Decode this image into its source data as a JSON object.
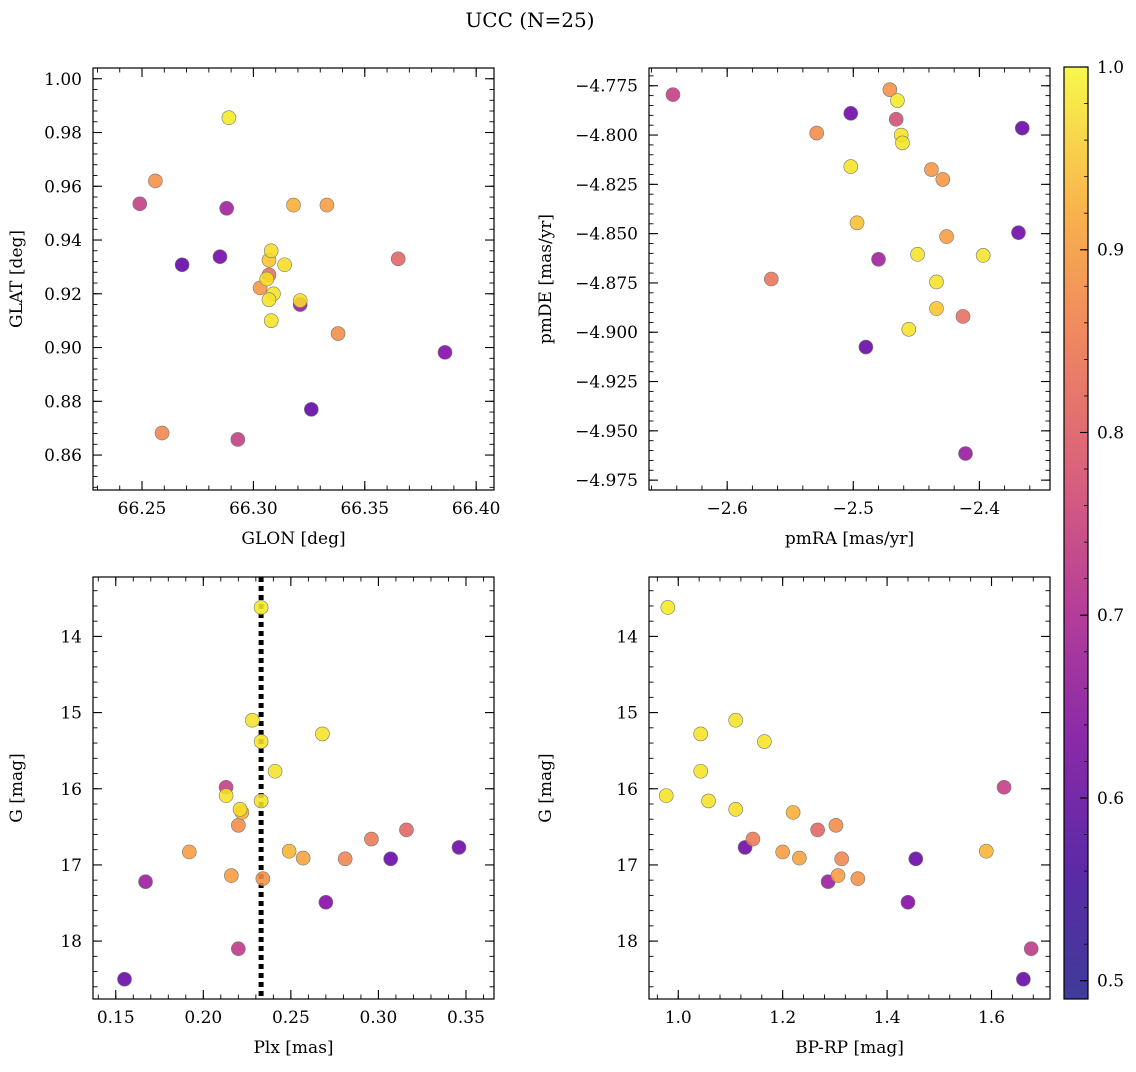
{
  "figure": {
    "title": "UCC (N=25)"
  },
  "colorbar": {
    "ticks": [
      0.5,
      0.6,
      0.7,
      0.8,
      0.9,
      1.0
    ],
    "tick_labels": [
      "0.5",
      "0.6",
      "0.7",
      "0.8",
      "0.9",
      "1.0"
    ],
    "range": [
      0.49,
      1.0
    ],
    "colormap": "plasma"
  },
  "chart_data": [
    {
      "type": "scatter",
      "panel": "top-left",
      "xlabel": "GLON [deg]",
      "ylabel": "GLAT [deg]",
      "xlim": [
        66.228,
        66.408
      ],
      "ylim": [
        0.847,
        1.004
      ],
      "xticks": [
        66.25,
        66.3,
        66.35,
        66.4
      ],
      "xtick_labels": [
        "66.25",
        "66.30",
        "66.35",
        "66.40"
      ],
      "yticks": [
        0.86,
        0.88,
        0.9,
        0.92,
        0.94,
        0.96,
        0.98,
        1.0
      ],
      "ytick_labels": [
        "0.86",
        "0.88",
        "0.90",
        "0.92",
        "0.94",
        "0.96",
        "0.98",
        "1.00"
      ],
      "points": [
        {
          "x": 66.289,
          "y": 0.9855,
          "c": 0.98
        },
        {
          "x": 66.256,
          "y": 0.962,
          "c": 0.84
        },
        {
          "x": 66.249,
          "y": 0.9535,
          "c": 0.68
        },
        {
          "x": 66.288,
          "y": 0.9518,
          "c": 0.62
        },
        {
          "x": 66.318,
          "y": 0.953,
          "c": 0.89
        },
        {
          "x": 66.333,
          "y": 0.953,
          "c": 0.86
        },
        {
          "x": 66.268,
          "y": 0.9308,
          "c": 0.5
        },
        {
          "x": 66.285,
          "y": 0.9338,
          "c": 0.53
        },
        {
          "x": 66.308,
          "y": 0.936,
          "c": 0.96
        },
        {
          "x": 66.307,
          "y": 0.9325,
          "c": 0.93
        },
        {
          "x": 66.314,
          "y": 0.9308,
          "c": 0.96
        },
        {
          "x": 66.307,
          "y": 0.927,
          "c": 0.78
        },
        {
          "x": 66.306,
          "y": 0.9255,
          "c": 0.96
        },
        {
          "x": 66.303,
          "y": 0.9222,
          "c": 0.85
        },
        {
          "x": 66.309,
          "y": 0.92,
          "c": 0.97
        },
        {
          "x": 66.307,
          "y": 0.9178,
          "c": 0.97
        },
        {
          "x": 66.321,
          "y": 0.916,
          "c": 0.6
        },
        {
          "x": 66.321,
          "y": 0.9175,
          "c": 0.96
        },
        {
          "x": 66.308,
          "y": 0.91,
          "c": 0.97
        },
        {
          "x": 66.365,
          "y": 0.933,
          "c": 0.76
        },
        {
          "x": 66.338,
          "y": 0.9052,
          "c": 0.83
        },
        {
          "x": 66.386,
          "y": 0.8982,
          "c": 0.56
        },
        {
          "x": 66.326,
          "y": 0.877,
          "c": 0.5
        },
        {
          "x": 66.259,
          "y": 0.8682,
          "c": 0.82
        },
        {
          "x": 66.293,
          "y": 0.8658,
          "c": 0.68
        }
      ]
    },
    {
      "type": "scatter",
      "panel": "top-right",
      "xlabel": "pmRA [mas/yr]",
      "ylabel": "pmDE [mas/yr]",
      "xlim": [
        -2.662,
        -2.344
      ],
      "ylim": [
        -4.98,
        -4.766
      ],
      "xticks": [
        -2.6,
        -2.5,
        -2.4
      ],
      "xtick_labels": [
        "−2.6",
        "−2.5",
        "−2.4"
      ],
      "yticks": [
        -4.775,
        -4.8,
        -4.825,
        -4.85,
        -4.875,
        -4.9,
        -4.925,
        -4.95,
        -4.975
      ],
      "ytick_labels": [
        "−4.775",
        "−4.800",
        "−4.825",
        "−4.850",
        "−4.875",
        "−4.900",
        "−4.925",
        "−4.950",
        "−4.975"
      ],
      "points": [
        {
          "x": -2.643,
          "y": -4.7795,
          "c": 0.68
        },
        {
          "x": -2.471,
          "y": -4.777,
          "c": 0.84
        },
        {
          "x": -2.465,
          "y": -4.7825,
          "c": 0.98
        },
        {
          "x": -2.502,
          "y": -4.789,
          "c": 0.52
        },
        {
          "x": -2.466,
          "y": -4.792,
          "c": 0.71
        },
        {
          "x": -2.529,
          "y": -4.799,
          "c": 0.83
        },
        {
          "x": -2.462,
          "y": -4.8,
          "c": 0.97
        },
        {
          "x": -2.461,
          "y": -4.804,
          "c": 0.97
        },
        {
          "x": -2.366,
          "y": -4.7965,
          "c": 0.51
        },
        {
          "x": -2.502,
          "y": -4.816,
          "c": 0.97
        },
        {
          "x": -2.438,
          "y": -4.8175,
          "c": 0.85
        },
        {
          "x": -2.429,
          "y": -4.8225,
          "c": 0.85
        },
        {
          "x": -2.497,
          "y": -4.8445,
          "c": 0.92
        },
        {
          "x": -2.426,
          "y": -4.8515,
          "c": 0.86
        },
        {
          "x": -2.369,
          "y": -4.8495,
          "c": 0.52
        },
        {
          "x": -2.48,
          "y": -4.863,
          "c": 0.62
        },
        {
          "x": -2.449,
          "y": -4.8605,
          "c": 0.97
        },
        {
          "x": -2.397,
          "y": -4.861,
          "c": 0.97
        },
        {
          "x": -2.565,
          "y": -4.873,
          "c": 0.79
        },
        {
          "x": -2.434,
          "y": -4.8745,
          "c": 0.97
        },
        {
          "x": -2.434,
          "y": -4.888,
          "c": 0.93
        },
        {
          "x": -2.413,
          "y": -4.892,
          "c": 0.78
        },
        {
          "x": -2.456,
          "y": -4.8985,
          "c": 0.97
        },
        {
          "x": -2.49,
          "y": -4.9075,
          "c": 0.51
        },
        {
          "x": -2.411,
          "y": -4.9615,
          "c": 0.6
        }
      ]
    },
    {
      "type": "scatter",
      "panel": "bottom-left",
      "xlabel": "Plx [mas]",
      "ylabel": "G [mag]",
      "xlim": [
        0.137,
        0.366
      ],
      "ylim": [
        18.76,
        13.22
      ],
      "y_inverted": true,
      "reference_line": {
        "x": 0.233,
        "style": "dotted"
      },
      "xticks": [
        0.15,
        0.2,
        0.25,
        0.3,
        0.35
      ],
      "xtick_labels": [
        "0.15",
        "0.20",
        "0.25",
        "0.30",
        "0.35"
      ],
      "yticks": [
        14,
        15,
        16,
        17,
        18
      ],
      "ytick_labels": [
        "14",
        "15",
        "16",
        "17",
        "18"
      ],
      "points": [
        {
          "x": 0.233,
          "y": 13.62,
          "c": 0.98
        },
        {
          "x": 0.228,
          "y": 15.1,
          "c": 0.97
        },
        {
          "x": 0.268,
          "y": 15.28,
          "c": 0.97
        },
        {
          "x": 0.233,
          "y": 15.38,
          "c": 0.97
        },
        {
          "x": 0.241,
          "y": 15.77,
          "c": 0.97
        },
        {
          "x": 0.213,
          "y": 15.98,
          "c": 0.68
        },
        {
          "x": 0.213,
          "y": 16.09,
          "c": 0.97
        },
        {
          "x": 0.233,
          "y": 16.16,
          "c": 0.97
        },
        {
          "x": 0.221,
          "y": 16.27,
          "c": 0.96
        },
        {
          "x": 0.222,
          "y": 16.31,
          "c": 0.89
        },
        {
          "x": 0.22,
          "y": 16.48,
          "c": 0.83
        },
        {
          "x": 0.316,
          "y": 16.54,
          "c": 0.76
        },
        {
          "x": 0.296,
          "y": 16.66,
          "c": 0.8
        },
        {
          "x": 0.346,
          "y": 16.77,
          "c": 0.52
        },
        {
          "x": 0.192,
          "y": 16.83,
          "c": 0.86
        },
        {
          "x": 0.249,
          "y": 16.82,
          "c": 0.9
        },
        {
          "x": 0.257,
          "y": 16.91,
          "c": 0.87
        },
        {
          "x": 0.281,
          "y": 16.92,
          "c": 0.82
        },
        {
          "x": 0.307,
          "y": 16.92,
          "c": 0.51
        },
        {
          "x": 0.216,
          "y": 17.14,
          "c": 0.86
        },
        {
          "x": 0.234,
          "y": 17.18,
          "c": 0.84
        },
        {
          "x": 0.167,
          "y": 17.22,
          "c": 0.61
        },
        {
          "x": 0.27,
          "y": 17.49,
          "c": 0.56
        },
        {
          "x": 0.22,
          "y": 18.1,
          "c": 0.67
        },
        {
          "x": 0.155,
          "y": 18.5,
          "c": 0.51
        }
      ]
    },
    {
      "type": "scatter",
      "panel": "bottom-right",
      "xlabel": "BP-RP [mag]",
      "ylabel": "G [mag]",
      "xlim": [
        0.944,
        1.712
      ],
      "ylim": [
        18.76,
        13.22
      ],
      "y_inverted": true,
      "xticks": [
        1.0,
        1.2,
        1.4,
        1.6
      ],
      "xtick_labels": [
        "1.0",
        "1.2",
        "1.4",
        "1.6"
      ],
      "yticks": [
        14,
        15,
        16,
        17,
        18
      ],
      "ytick_labels": [
        "14",
        "15",
        "16",
        "17",
        "18"
      ],
      "points": [
        {
          "x": 0.98,
          "y": 13.62,
          "c": 0.98
        },
        {
          "x": 1.11,
          "y": 15.1,
          "c": 0.97
        },
        {
          "x": 1.043,
          "y": 15.28,
          "c": 0.97
        },
        {
          "x": 1.165,
          "y": 15.38,
          "c": 0.97
        },
        {
          "x": 1.043,
          "y": 15.77,
          "c": 0.97
        },
        {
          "x": 1.624,
          "y": 15.98,
          "c": 0.68
        },
        {
          "x": 0.977,
          "y": 16.09,
          "c": 0.97
        },
        {
          "x": 1.058,
          "y": 16.16,
          "c": 0.97
        },
        {
          "x": 1.11,
          "y": 16.27,
          "c": 0.96
        },
        {
          "x": 1.22,
          "y": 16.31,
          "c": 0.89
        },
        {
          "x": 1.302,
          "y": 16.48,
          "c": 0.83
        },
        {
          "x": 1.267,
          "y": 16.54,
          "c": 0.76
        },
        {
          "x": 1.143,
          "y": 16.66,
          "c": 0.8
        },
        {
          "x": 1.128,
          "y": 16.77,
          "c": 0.52
        },
        {
          "x": 1.2,
          "y": 16.83,
          "c": 0.86
        },
        {
          "x": 1.59,
          "y": 16.82,
          "c": 0.9
        },
        {
          "x": 1.232,
          "y": 16.91,
          "c": 0.87
        },
        {
          "x": 1.313,
          "y": 16.92,
          "c": 0.82
        },
        {
          "x": 1.455,
          "y": 16.92,
          "c": 0.51
        },
        {
          "x": 1.306,
          "y": 17.14,
          "c": 0.86
        },
        {
          "x": 1.344,
          "y": 17.18,
          "c": 0.84
        },
        {
          "x": 1.287,
          "y": 17.22,
          "c": 0.61
        },
        {
          "x": 1.44,
          "y": 17.49,
          "c": 0.56
        },
        {
          "x": 1.676,
          "y": 18.1,
          "c": 0.67
        },
        {
          "x": 1.661,
          "y": 18.5,
          "c": 0.51
        }
      ]
    }
  ]
}
